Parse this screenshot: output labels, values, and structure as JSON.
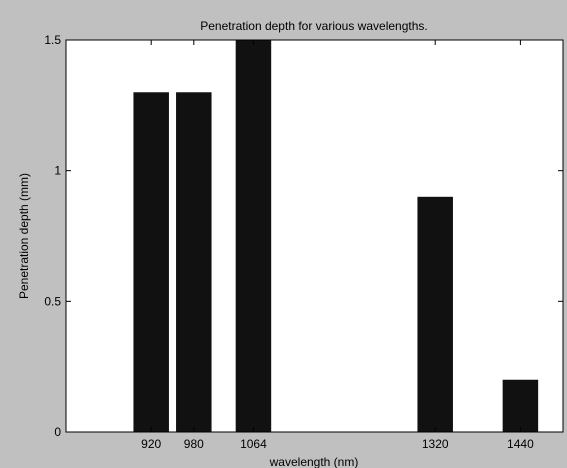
{
  "chart_data": {
    "type": "bar",
    "title": "Penetration depth for various wavelengths.",
    "xlabel": "wavelength (nm)",
    "ylabel": "Penetration depth (mm)",
    "x": [
      920,
      980,
      1064,
      1320,
      1440
    ],
    "categories": [
      "920",
      "980",
      "1064",
      "1320",
      "1440"
    ],
    "values": [
      1.3,
      1.3,
      1.5,
      0.9,
      0.2
    ],
    "xlim": [
      800,
      1500
    ],
    "ylim": [
      0,
      1.5
    ],
    "yticks": [
      0,
      0.5,
      1,
      1.5
    ],
    "ytick_labels": [
      "0",
      "0.5",
      "1",
      "1.5"
    ],
    "bar_width": 50,
    "grid": false,
    "legend": "none",
    "colors": {
      "bar": "#111111",
      "axes_background": "#ffffff",
      "figure_background": "#c0c0c0"
    }
  }
}
